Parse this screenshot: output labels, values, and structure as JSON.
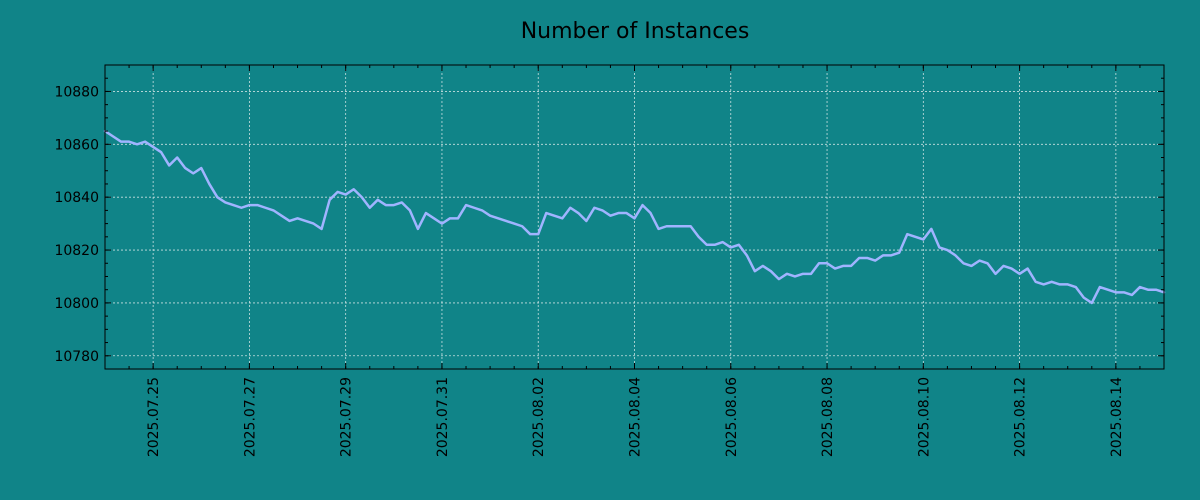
{
  "chart_data": {
    "type": "line",
    "title": "Number of Instances",
    "xlabel": "",
    "ylabel": "",
    "x_range": [
      "2025-07-24T00:00",
      "2025-08-15T00:00"
    ],
    "ylim": [
      10775,
      10890
    ],
    "x_ticks": [
      "2025.07.25",
      "2025.07.27",
      "2025.07.29",
      "2025.07.31",
      "2025.08.02",
      "2025.08.04",
      "2025.08.06",
      "2025.08.08",
      "2025.08.10",
      "2025.08.12",
      "2025.08.14"
    ],
    "y_ticks": [
      10780,
      10800,
      10820,
      10840,
      10860,
      10880
    ],
    "y_tick_labels": [
      "10780",
      "10800",
      "10820",
      "10840",
      "10860",
      "10880"
    ],
    "grid": true,
    "legend": "none",
    "colors": {
      "background": "#108488",
      "line": "#a0b4ff",
      "grid": "#c8e0e0",
      "axis": "#000000"
    },
    "series": [
      {
        "x": [
          "2025-07-24T00:00",
          "2025-07-24T04:00",
          "2025-07-24T08:00",
          "2025-07-24T12:00",
          "2025-07-24T16:00",
          "2025-07-24T20:00",
          "2025-07-25T00:00",
          "2025-07-25T04:00",
          "2025-07-25T08:00",
          "2025-07-25T12:00",
          "2025-07-25T16:00",
          "2025-07-25T20:00",
          "2025-07-26T00:00",
          "2025-07-26T04:00",
          "2025-07-26T08:00",
          "2025-07-26T12:00",
          "2025-07-26T16:00",
          "2025-07-26T20:00",
          "2025-07-27T00:00",
          "2025-07-27T04:00",
          "2025-07-27T08:00",
          "2025-07-27T12:00",
          "2025-07-27T16:00",
          "2025-07-27T20:00",
          "2025-07-28T00:00",
          "2025-07-28T04:00",
          "2025-07-28T08:00",
          "2025-07-28T12:00",
          "2025-07-28T16:00",
          "2025-07-28T20:00",
          "2025-07-29T00:00",
          "2025-07-29T04:00",
          "2025-07-29T08:00",
          "2025-07-29T12:00",
          "2025-07-29T16:00",
          "2025-07-29T20:00",
          "2025-07-30T00:00",
          "2025-07-30T04:00",
          "2025-07-30T08:00",
          "2025-07-30T12:00",
          "2025-07-30T16:00",
          "2025-07-30T20:00",
          "2025-07-31T00:00",
          "2025-07-31T04:00",
          "2025-07-31T08:00",
          "2025-07-31T12:00",
          "2025-07-31T16:00",
          "2025-07-31T20:00",
          "2025-08-01T00:00",
          "2025-08-01T04:00",
          "2025-08-01T08:00",
          "2025-08-01T12:00",
          "2025-08-01T16:00",
          "2025-08-01T20:00",
          "2025-08-02T00:00",
          "2025-08-02T04:00",
          "2025-08-02T08:00",
          "2025-08-02T12:00",
          "2025-08-02T16:00",
          "2025-08-02T20:00",
          "2025-08-03T00:00",
          "2025-08-03T04:00",
          "2025-08-03T08:00",
          "2025-08-03T12:00",
          "2025-08-03T16:00",
          "2025-08-03T20:00",
          "2025-08-04T00:00",
          "2025-08-04T04:00",
          "2025-08-04T08:00",
          "2025-08-04T12:00",
          "2025-08-04T16:00",
          "2025-08-04T20:00",
          "2025-08-05T00:00",
          "2025-08-05T04:00",
          "2025-08-05T08:00",
          "2025-08-05T12:00",
          "2025-08-05T16:00",
          "2025-08-05T20:00",
          "2025-08-06T00:00",
          "2025-08-06T04:00",
          "2025-08-06T08:00",
          "2025-08-06T12:00",
          "2025-08-06T16:00",
          "2025-08-06T20:00",
          "2025-08-07T00:00",
          "2025-08-07T04:00",
          "2025-08-07T08:00",
          "2025-08-07T12:00",
          "2025-08-07T16:00",
          "2025-08-07T20:00",
          "2025-08-08T00:00",
          "2025-08-08T04:00",
          "2025-08-08T08:00",
          "2025-08-08T12:00",
          "2025-08-08T16:00",
          "2025-08-08T20:00",
          "2025-08-09T00:00",
          "2025-08-09T04:00",
          "2025-08-09T08:00",
          "2025-08-09T12:00",
          "2025-08-09T16:00",
          "2025-08-09T20:00",
          "2025-08-10T00:00",
          "2025-08-10T04:00",
          "2025-08-10T08:00",
          "2025-08-10T12:00",
          "2025-08-10T16:00",
          "2025-08-10T20:00",
          "2025-08-11T00:00",
          "2025-08-11T04:00",
          "2025-08-11T08:00",
          "2025-08-11T12:00",
          "2025-08-11T16:00",
          "2025-08-11T20:00",
          "2025-08-12T00:00",
          "2025-08-12T04:00",
          "2025-08-12T08:00",
          "2025-08-12T12:00",
          "2025-08-12T16:00",
          "2025-08-12T20:00",
          "2025-08-13T00:00",
          "2025-08-13T04:00",
          "2025-08-13T08:00",
          "2025-08-13T12:00",
          "2025-08-13T16:00",
          "2025-08-13T20:00",
          "2025-08-14T00:00",
          "2025-08-14T04:00",
          "2025-08-14T08:00",
          "2025-08-14T12:00",
          "2025-08-14T16:00",
          "2025-08-14T20:00",
          "2025-08-15T00:00"
        ],
        "values": [
          10865,
          10863,
          10861,
          10861,
          10860,
          10861,
          10859,
          10857,
          10852,
          10855,
          10851,
          10849,
          10851,
          10845,
          10840,
          10838,
          10837,
          10836,
          10837,
          10837,
          10836,
          10835,
          10833,
          10831,
          10832,
          10831,
          10830,
          10828,
          10839,
          10842,
          10841,
          10843,
          10840,
          10836,
          10839,
          10837,
          10837,
          10838,
          10835,
          10828,
          10834,
          10832,
          10830,
          10832,
          10832,
          10837,
          10836,
          10835,
          10833,
          10832,
          10831,
          10830,
          10829,
          10826,
          10826,
          10834,
          10833,
          10832,
          10836,
          10834,
          10831,
          10836,
          10835,
          10833,
          10834,
          10834,
          10832,
          10837,
          10834,
          10828,
          10829,
          10829,
          10829,
          10829,
          10825,
          10822,
          10822,
          10823,
          10821,
          10822,
          10818,
          10812,
          10814,
          10812,
          10809,
          10811,
          10810,
          10811,
          10811,
          10815,
          10815,
          10813,
          10814,
          10814,
          10817,
          10817,
          10816,
          10818,
          10818,
          10819,
          10826,
          10825,
          10824,
          10828,
          10821,
          10820,
          10818,
          10815,
          10814,
          10816,
          10815,
          10811,
          10814,
          10813,
          10811,
          10813,
          10808,
          10807,
          10808,
          10807,
          10807,
          10806,
          10802,
          10800,
          10806,
          10805,
          10804,
          10804,
          10803,
          10806,
          10805,
          10805,
          10804
        ]
      }
    ]
  }
}
